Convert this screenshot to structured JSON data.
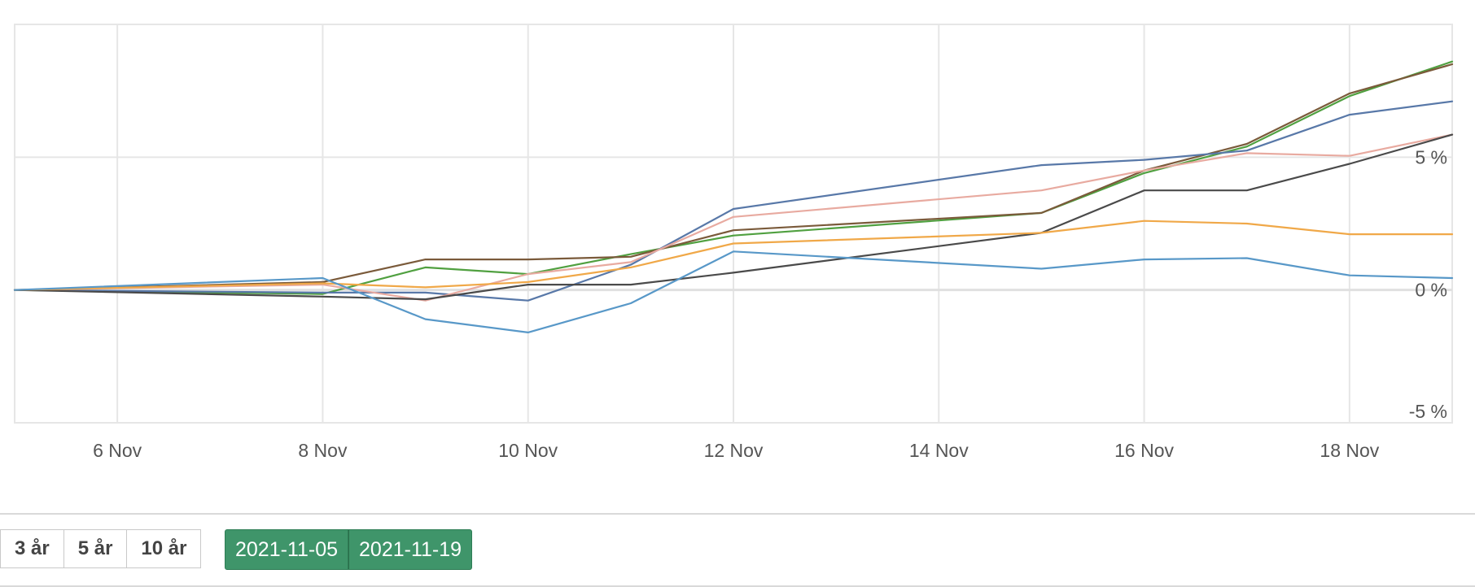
{
  "chart_data": {
    "type": "line",
    "x_dates": [
      "2021-11-05",
      "2021-11-08",
      "2021-11-09",
      "2021-11-10",
      "2021-11-11",
      "2021-11-12",
      "2021-11-15",
      "2021-11-16",
      "2021-11-17",
      "2021-11-18",
      "2021-11-19"
    ],
    "x_ticks": [
      {
        "date": "2021-11-06",
        "label": "6 Nov"
      },
      {
        "date": "2021-11-08",
        "label": "8 Nov"
      },
      {
        "date": "2021-11-10",
        "label": "10 Nov"
      },
      {
        "date": "2021-11-12",
        "label": "12 Nov"
      },
      {
        "date": "2021-11-14",
        "label": "14 Nov"
      },
      {
        "date": "2021-11-16",
        "label": "16 Nov"
      },
      {
        "date": "2021-11-18",
        "label": "18 Nov"
      }
    ],
    "y_ticks": [
      {
        "value": 5,
        "label": "5 %"
      },
      {
        "value": 0,
        "label": "0 %"
      },
      {
        "value": -5,
        "label": "-5 %"
      }
    ],
    "ylim": [
      -5,
      10
    ],
    "xlim": [
      "2021-11-05",
      "2021-11-19"
    ],
    "grid": true,
    "series": [
      {
        "color": "#50a040",
        "values": [
          0,
          -0.15,
          0.85,
          0.6,
          1.35,
          2.05,
          2.9,
          4.4,
          5.4,
          7.3,
          8.6
        ]
      },
      {
        "color": "#7a5a3a",
        "values": [
          0,
          0.3,
          1.15,
          1.15,
          1.25,
          2.25,
          2.9,
          4.5,
          5.5,
          7.4,
          8.5
        ]
      },
      {
        "color": "#5878a8",
        "values": [
          0,
          -0.1,
          -0.1,
          -0.4,
          0.95,
          3.05,
          4.7,
          4.9,
          5.25,
          6.6,
          7.1
        ]
      },
      {
        "color": "#e8aaa0",
        "values": [
          0,
          0.2,
          -0.4,
          0.6,
          1.05,
          2.75,
          3.75,
          4.5,
          5.15,
          5.05,
          5.85
        ]
      },
      {
        "color": "#4a4a4a",
        "values": [
          0,
          -0.25,
          -0.35,
          0.2,
          0.2,
          0.65,
          2.15,
          3.75,
          3.75,
          4.75,
          5.85
        ]
      },
      {
        "color": "#f0a848",
        "values": [
          0,
          0.25,
          0.1,
          0.3,
          0.85,
          1.75,
          2.15,
          2.6,
          2.5,
          2.1,
          2.1
        ]
      },
      {
        "color": "#5898c8",
        "values": [
          0,
          0.45,
          -1.1,
          -1.6,
          -0.5,
          1.45,
          0.8,
          1.15,
          1.2,
          0.55,
          0.45
        ]
      }
    ]
  },
  "range_buttons": [
    {
      "label": "3 år"
    },
    {
      "label": "5 år"
    },
    {
      "label": "10 år"
    }
  ],
  "date_range": {
    "start": "2021-11-05",
    "end": "2021-11-19"
  }
}
